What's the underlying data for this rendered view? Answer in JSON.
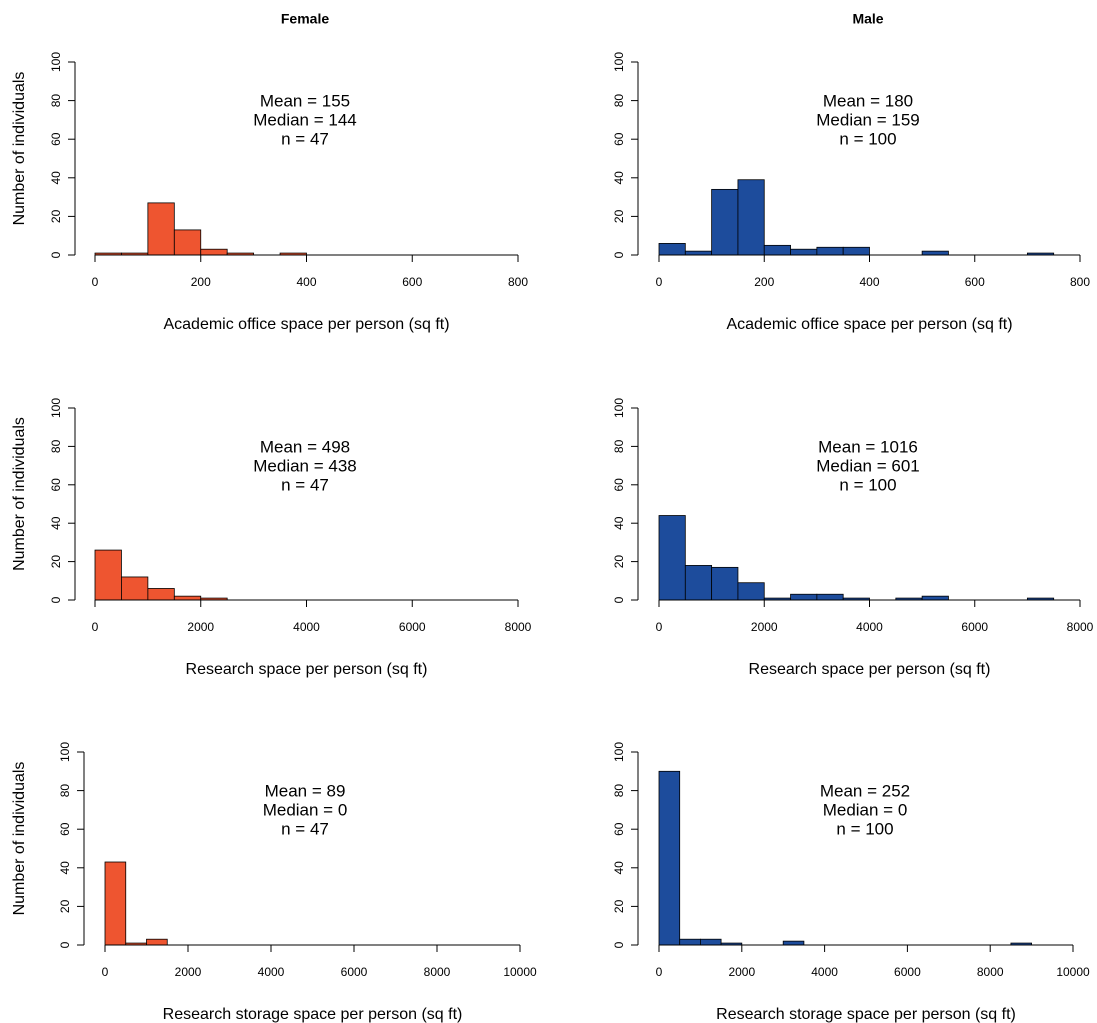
{
  "chart_data": [
    {
      "type": "histogram",
      "title": "Female",
      "annotations": [
        "Mean = 155",
        "Median = 144",
        "n = 47"
      ],
      "xlabel": "Academic office space per person (sq ft)",
      "ylabel": "Number of individuals",
      "color": "#ee5530",
      "bins": [
        0,
        50,
        100,
        150,
        200,
        250,
        300,
        350,
        400
      ],
      "values": [
        1,
        1,
        27,
        13,
        3,
        1,
        0,
        1
      ],
      "xlim": [
        0,
        800
      ],
      "xticks": [
        0,
        200,
        400,
        600,
        800
      ],
      "ylim": [
        0,
        100
      ],
      "yticks": [
        0,
        20,
        40,
        60,
        80,
        100
      ]
    },
    {
      "type": "histogram",
      "title": "Male",
      "annotations": [
        "Mean = 180",
        "Median = 159",
        "n = 100"
      ],
      "xlabel": "Academic office space per person (sq ft)",
      "color": "#1d4c9c",
      "bins": [
        0,
        50,
        100,
        150,
        200,
        250,
        300,
        350,
        400,
        450,
        500,
        550,
        600,
        650,
        700,
        750
      ],
      "values": [
        6,
        2,
        34,
        39,
        5,
        3,
        4,
        4,
        0,
        0,
        2,
        0,
        0,
        0,
        1
      ],
      "xlim": [
        0,
        800
      ],
      "xticks": [
        0,
        200,
        400,
        600,
        800
      ],
      "ylim": [
        0,
        100
      ],
      "yticks": [
        0,
        20,
        40,
        60,
        80,
        100
      ]
    },
    {
      "type": "histogram",
      "annotations": [
        "Mean = 498",
        "Median = 438",
        "n = 47"
      ],
      "xlabel": "Research space per person (sq ft)",
      "ylabel": "Number of individuals",
      "color": "#ee5530",
      "bins": [
        0,
        500,
        1000,
        1500,
        2000,
        2500
      ],
      "values": [
        26,
        12,
        6,
        2,
        1
      ],
      "xlim": [
        0,
        8000
      ],
      "xticks": [
        0,
        2000,
        4000,
        6000,
        8000
      ],
      "ylim": [
        0,
        100
      ],
      "yticks": [
        0,
        20,
        40,
        60,
        80,
        100
      ]
    },
    {
      "type": "histogram",
      "annotations": [
        "Mean = 1016",
        "Median = 601",
        "n = 100"
      ],
      "xlabel": "Research space per person (sq ft)",
      "color": "#1d4c9c",
      "bins": [
        0,
        500,
        1000,
        1500,
        2000,
        2500,
        3000,
        3500,
        4000,
        4500,
        5000,
        5500,
        6000,
        6500,
        7000,
        7500
      ],
      "values": [
        44,
        18,
        17,
        9,
        1,
        3,
        3,
        1,
        0,
        1,
        2,
        0,
        0,
        0,
        1
      ],
      "xlim": [
        0,
        8000
      ],
      "xticks": [
        0,
        2000,
        4000,
        6000,
        8000
      ],
      "ylim": [
        0,
        100
      ],
      "yticks": [
        0,
        20,
        40,
        60,
        80,
        100
      ]
    },
    {
      "type": "histogram",
      "annotations": [
        "Mean = 89",
        "Median = 0",
        "n = 47"
      ],
      "xlabel": "Research storage space per person (sq ft)",
      "ylabel": "Number of individuals",
      "color": "#ee5530",
      "bins": [
        0,
        500,
        1000,
        1500
      ],
      "values": [
        43,
        1,
        3
      ],
      "xlim": [
        0,
        10000
      ],
      "xticks": [
        0,
        2000,
        4000,
        6000,
        8000,
        10000
      ],
      "ylim": [
        0,
        100
      ],
      "yticks": [
        0,
        20,
        40,
        60,
        80,
        100
      ]
    },
    {
      "type": "histogram",
      "annotations": [
        "Mean = 252",
        "Median = 0",
        "n = 100"
      ],
      "xlabel": "Research storage space per person (sq ft)",
      "color": "#1d4c9c",
      "bins": [
        0,
        500,
        1000,
        1500,
        2000,
        2500,
        3000,
        3500,
        4000,
        4500,
        5000,
        5500,
        6000,
        6500,
        7000,
        7500,
        8000,
        8500,
        9000
      ],
      "values": [
        90,
        3,
        3,
        1,
        0,
        0,
        2,
        0,
        0,
        0,
        0,
        0,
        0,
        0,
        0,
        0,
        0,
        1
      ],
      "xlim": [
        0,
        10000
      ],
      "xticks": [
        0,
        2000,
        4000,
        6000,
        8000,
        10000
      ],
      "ylim": [
        0,
        100
      ],
      "yticks": [
        0,
        20,
        40,
        60,
        80,
        100
      ]
    }
  ]
}
